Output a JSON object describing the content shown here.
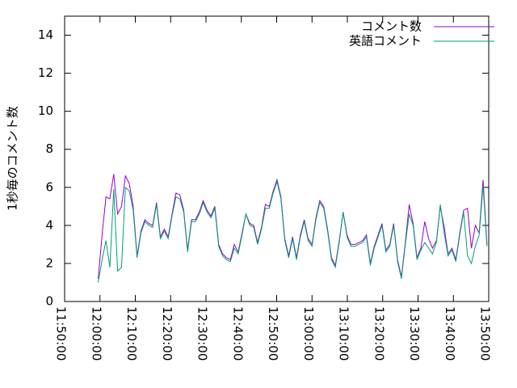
{
  "chart_data": {
    "type": "line",
    "ylabel": "1秒毎のコメント数",
    "x": [
      43170,
      43236,
      43302,
      43368,
      43434,
      43500,
      43566,
      43632,
      43698,
      43764,
      43830,
      43896,
      43962,
      44028,
      44094,
      44160,
      44226,
      44292,
      44358,
      44424,
      44490,
      44556,
      44622,
      44688,
      44754,
      44820,
      44886,
      44952,
      45018,
      45084,
      45150,
      45216,
      45282,
      45348,
      45414,
      45480,
      45546,
      45612,
      45678,
      45744,
      45810,
      45876,
      45942,
      46008,
      46074,
      46140,
      46206,
      46272,
      46338,
      46404,
      46470,
      46536,
      46602,
      46668,
      46734,
      46800,
      46866,
      46932,
      46998,
      47064,
      47130,
      47196,
      47262,
      47328,
      47394,
      47460,
      47526,
      47592,
      47658,
      47724,
      47790,
      47856,
      47922,
      47988,
      48054,
      48120,
      48186,
      48252,
      48318,
      48384,
      48450,
      48516,
      48582,
      48648,
      48714,
      48780,
      48846,
      48912,
      48978,
      49044,
      49110,
      49176,
      49242,
      49308,
      49374,
      49440,
      49506,
      49572,
      49638,
      49704,
      49770
    ],
    "series": [
      {
        "name": "コメント数",
        "color": "#9400d3",
        "values": [
          1.2,
          3.5,
          5.5,
          5.4,
          6.7,
          4.6,
          5.0,
          6.6,
          6.2,
          5.0,
          2.4,
          3.7,
          4.3,
          4.1,
          4.0,
          5.2,
          3.4,
          3.8,
          3.4,
          4.6,
          5.7,
          5.6,
          4.8,
          2.7,
          4.3,
          4.3,
          4.7,
          5.3,
          4.8,
          4.5,
          5.0,
          3.0,
          2.5,
          2.3,
          2.2,
          3.0,
          2.6,
          3.6,
          4.6,
          4.1,
          4.0,
          3.1,
          3.9,
          5.1,
          5.0,
          5.8,
          6.4,
          5.5,
          3.3,
          2.4,
          3.4,
          2.3,
          3.5,
          4.3,
          3.3,
          3.0,
          4.4,
          5.3,
          5.0,
          3.8,
          2.3,
          1.9,
          3.2,
          4.7,
          3.5,
          3.0,
          3.0,
          3.1,
          3.2,
          3.5,
          2.0,
          2.9,
          3.5,
          4.1,
          2.7,
          3.0,
          4.1,
          2.2,
          1.3,
          3.1,
          5.1,
          4.1,
          2.3,
          2.8,
          4.2,
          3.3,
          2.8,
          3.2,
          5.0,
          3.9,
          2.5,
          2.8,
          2.2,
          3.6,
          4.8,
          4.9,
          2.8,
          4.0,
          3.6,
          6.4,
          3.0
        ]
      },
      {
        "name": "英語コメント",
        "color": "#009e73",
        "values": [
          1.0,
          2.2,
          3.2,
          1.8,
          5.9,
          1.6,
          1.8,
          6.0,
          5.8,
          4.8,
          2.3,
          3.6,
          4.2,
          4.0,
          3.9,
          5.1,
          3.3,
          3.7,
          3.3,
          4.5,
          5.5,
          5.4,
          4.7,
          2.6,
          4.2,
          4.2,
          4.6,
          5.2,
          4.7,
          4.4,
          4.9,
          2.9,
          2.4,
          2.2,
          2.1,
          2.8,
          2.5,
          3.5,
          4.6,
          4.0,
          3.9,
          3.0,
          3.8,
          4.9,
          4.9,
          5.7,
          6.3,
          5.4,
          3.2,
          2.3,
          3.3,
          2.2,
          3.4,
          4.2,
          3.2,
          2.9,
          4.3,
          5.2,
          4.9,
          3.7,
          2.2,
          1.8,
          3.1,
          4.7,
          3.4,
          2.9,
          2.9,
          3.0,
          3.1,
          3.4,
          1.9,
          2.8,
          3.4,
          4.0,
          2.6,
          2.9,
          4.0,
          2.1,
          1.2,
          3.0,
          4.6,
          4.0,
          2.2,
          2.7,
          3.1,
          2.8,
          2.5,
          3.1,
          5.1,
          3.6,
          2.4,
          2.7,
          2.1,
          3.5,
          4.7,
          2.4,
          2.0,
          2.9,
          3.5,
          6.1,
          2.9
        ]
      }
    ],
    "xlim": [
      42600,
      49800
    ],
    "xticks": [
      {
        "value": 42600,
        "label": "11:50:00"
      },
      {
        "value": 43200,
        "label": "12:00:00"
      },
      {
        "value": 43800,
        "label": "12:10:00"
      },
      {
        "value": 44400,
        "label": "12:20:00"
      },
      {
        "value": 45000,
        "label": "12:30:00"
      },
      {
        "value": 45600,
        "label": "12:40:00"
      },
      {
        "value": 46200,
        "label": "12:50:00"
      },
      {
        "value": 46800,
        "label": "13:00:00"
      },
      {
        "value": 47400,
        "label": "13:10:00"
      },
      {
        "value": 48000,
        "label": "13:20:00"
      },
      {
        "value": 48600,
        "label": "13:30:00"
      },
      {
        "value": 49200,
        "label": "13:40:00"
      },
      {
        "value": 49800,
        "label": "13:50:00"
      }
    ],
    "ylim": [
      0,
      15
    ],
    "yticks": [
      0,
      2,
      4,
      6,
      8,
      10,
      12,
      14
    ],
    "legend": "top-right"
  }
}
